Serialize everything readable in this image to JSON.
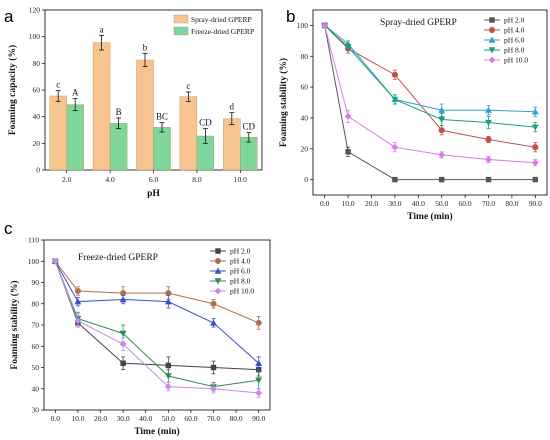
{
  "panels": {
    "a": "a",
    "b": "b",
    "c": "c"
  },
  "chart_data": [
    {
      "id": "a",
      "type": "bar",
      "xlabel": "pH",
      "ylabel": "Foaming capacity (%)",
      "categories": [
        "2.0",
        "4.0",
        "6.0",
        "8.0",
        "10.0"
      ],
      "ylim": [
        0,
        120
      ],
      "yticks": [
        0,
        20,
        40,
        60,
        80,
        100,
        120
      ],
      "legend": "top-right",
      "series": [
        {
          "name": "Spray-dried GPERP",
          "color": "#f7c48f",
          "values": [
            55.5,
            95.5,
            82.5,
            55,
            38.5
          ],
          "errors": [
            4,
            5.5,
            5,
            3.5,
            4.5
          ],
          "labels": [
            "c",
            "a",
            "b",
            "c",
            "d"
          ]
        },
        {
          "name": "Freeze-dried GPERP",
          "color": "#7fd69a",
          "values": [
            49,
            35,
            32,
            25.5,
            24.5
          ],
          "errors": [
            4.5,
            4,
            3.5,
            5.5,
            3.5
          ],
          "labels": [
            "A",
            "B",
            "BC",
            "CD",
            "CD"
          ]
        }
      ]
    },
    {
      "id": "b",
      "type": "line",
      "inset_title": "Spray-dried GPERP",
      "xlabel": "Time (min)",
      "ylabel": "Foaming stability (%)",
      "x": [
        0,
        10,
        30,
        50,
        70,
        90
      ],
      "xlim": [
        -5,
        95
      ],
      "xticks": [
        "0.0",
        "10.0",
        "20.0",
        "30.0",
        "40.0",
        "50.0",
        "60.0",
        "70.0",
        "80.0",
        "90.0"
      ],
      "ylim": [
        -10,
        110
      ],
      "yticks": [
        0,
        20,
        40,
        60,
        80,
        100
      ],
      "legend": "top-right",
      "series": [
        {
          "name": "pH 2.0",
          "color": "#555555",
          "marker": "square",
          "values": [
            100,
            18,
            0,
            0,
            0,
            0
          ],
          "errors": [
            0,
            3,
            0,
            0,
            0,
            0
          ]
        },
        {
          "name": "pH 4.0",
          "color": "#c0504d",
          "marker": "circle",
          "values": [
            100,
            85,
            68,
            32,
            26,
            21
          ],
          "errors": [
            0,
            3,
            3,
            3,
            2,
            3
          ]
        },
        {
          "name": "pH 6.0",
          "color": "#2f9fd0",
          "marker": "triangle",
          "values": [
            100,
            88,
            52,
            45,
            45,
            44
          ],
          "errors": [
            0,
            2,
            3,
            4,
            3,
            3
          ]
        },
        {
          "name": "pH 8.0",
          "color": "#1aa079",
          "marker": "triangle-down",
          "values": [
            100,
            86,
            52,
            39,
            37,
            34
          ],
          "errors": [
            0,
            2,
            3,
            4,
            4,
            3
          ]
        },
        {
          "name": "pH 10.0",
          "color": "#d47fe0",
          "marker": "diamond",
          "values": [
            100,
            41,
            21,
            16,
            13,
            11
          ],
          "errors": [
            0,
            4,
            3,
            2,
            2,
            2
          ]
        }
      ]
    },
    {
      "id": "c",
      "type": "line",
      "inset_title": "Freeze-dried GPERP",
      "xlabel": "Time (min)",
      "ylabel": "Foaming stability (%)",
      "x": [
        0,
        10,
        30,
        50,
        70,
        90
      ],
      "xlim": [
        -5,
        95
      ],
      "xticks": [
        "0.0",
        "10.0",
        "20.0",
        "30.0",
        "40.0",
        "50.0",
        "60.0",
        "70.0",
        "80.0",
        "90.0"
      ],
      "ylim": [
        30,
        110
      ],
      "yticks": [
        30,
        40,
        50,
        60,
        70,
        80,
        90,
        100,
        110
      ],
      "legend": "top-right",
      "series": [
        {
          "name": "pH 2.0",
          "color": "#444444",
          "marker": "square",
          "values": [
            100,
            71,
            52,
            51,
            50,
            49
          ],
          "errors": [
            0,
            2,
            3,
            4,
            3,
            3
          ]
        },
        {
          "name": "pH 4.0",
          "color": "#b07050",
          "marker": "circle",
          "values": [
            100,
            86,
            85,
            85,
            80,
            71
          ],
          "errors": [
            0,
            2,
            3,
            3,
            2,
            3
          ]
        },
        {
          "name": "pH 6.0",
          "color": "#3a4fc8",
          "marker": "triangle",
          "values": [
            100,
            81,
            82,
            81,
            71,
            52
          ],
          "errors": [
            0,
            2,
            2,
            3,
            2,
            3
          ]
        },
        {
          "name": "pH 8.0",
          "color": "#2e8b57",
          "marker": "triangle-down",
          "values": [
            100,
            73,
            66,
            46,
            41,
            44
          ],
          "errors": [
            0,
            3,
            4,
            3,
            2,
            4
          ]
        },
        {
          "name": "pH 10.0",
          "color": "#c58be8",
          "marker": "diamond",
          "values": [
            100,
            72,
            61,
            41,
            40,
            38
          ],
          "errors": [
            0,
            3,
            3,
            2,
            2,
            2
          ]
        }
      ]
    }
  ]
}
